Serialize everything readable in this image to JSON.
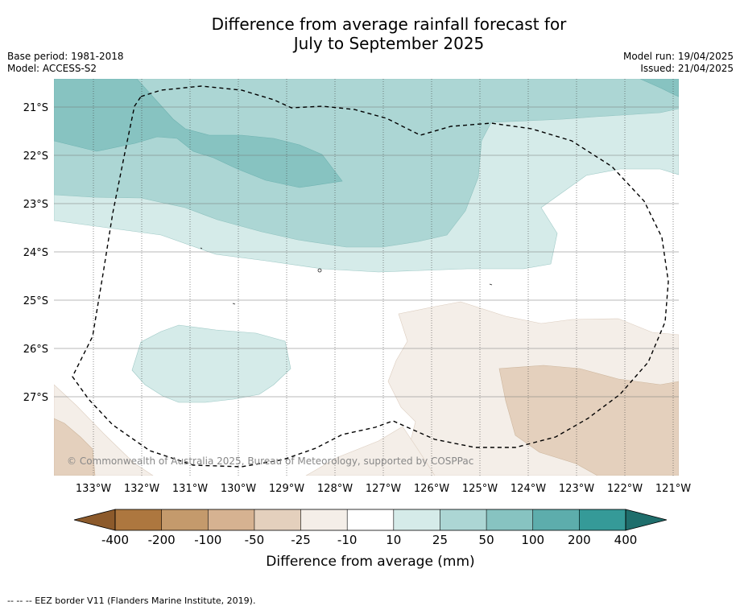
{
  "title": {
    "line1": "Difference from average rainfall forecast for",
    "line2": "July to September 2025"
  },
  "meta": {
    "base_period": "Base period: 1981-2018",
    "model": "Model: ACCESS-S2",
    "model_run": "Model run: 19/04/2025",
    "issued": "Issued: 21/04/2025"
  },
  "map": {
    "lat_labels": [
      "21°S",
      "22°S",
      "23°S",
      "24°S",
      "25°S",
      "26°S",
      "27°S"
    ],
    "lon_labels": [
      "133°W",
      "132°W",
      "131°W",
      "130°W",
      "129°W",
      "128°W",
      "127°W",
      "126°W",
      "125°W",
      "124°W",
      "123°W",
      "122°W",
      "121°W"
    ],
    "copyright": "© Commonwealth of Australia 2025, Bureau of Meteorology, supported by COSPPac",
    "eez_style": "dashed black line"
  },
  "colorbar": {
    "ticks": [
      "-400",
      "-200",
      "-100",
      "-50",
      "-25",
      "-10",
      "10",
      "25",
      "50",
      "100",
      "200",
      "400"
    ],
    "colors": [
      "#8c5a2b",
      "#ad773f",
      "#c49a6c",
      "#d6b291",
      "#e4d0bd",
      "#f4eee8",
      "#ffffff",
      "#d5ebe9",
      "#acd6d4",
      "#87c3c1",
      "#5dadac",
      "#359a98",
      "#1f6e6c"
    ],
    "label": "Difference from average (mm)"
  },
  "footnote": "-- -- -- EEZ border V11 (Flanders Marine Institute, 2019)."
}
